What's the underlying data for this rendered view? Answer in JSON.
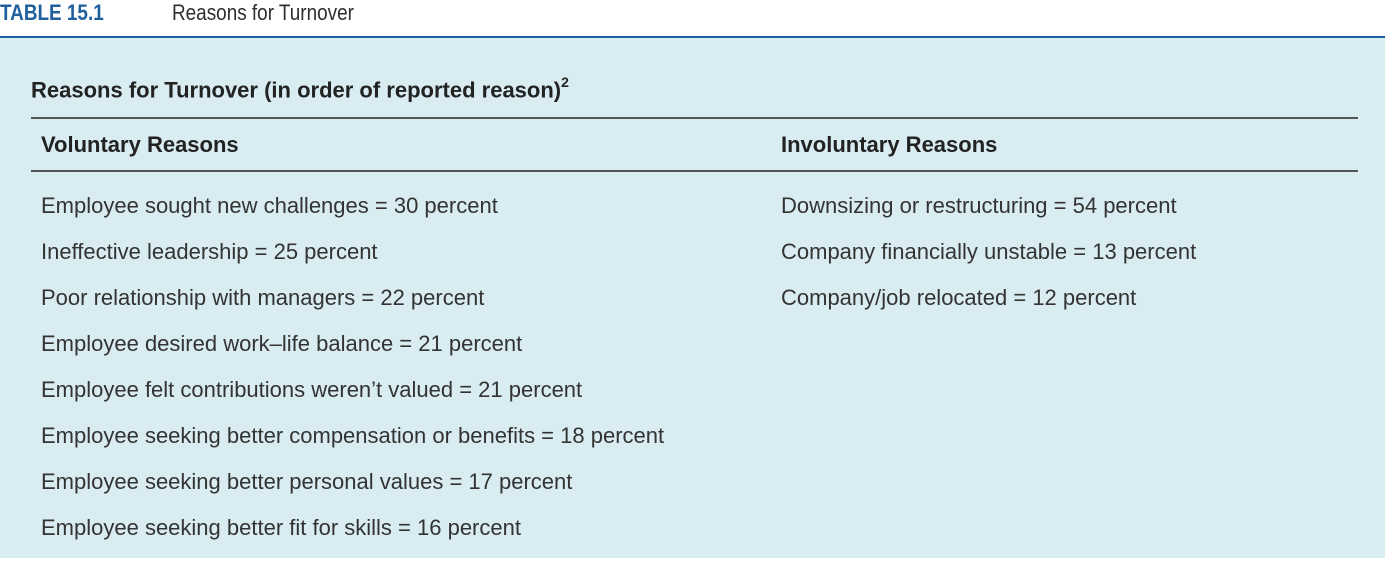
{
  "header": {
    "table_number": "TABLE 15.1",
    "table_title": "Reasons for Turnover"
  },
  "subtitle": {
    "text": "Reasons for Turnover (in order of reported reason)",
    "footnote": "2"
  },
  "columns": {
    "voluntary": {
      "heading": "Voluntary Reasons",
      "items": [
        "Employee sought new challenges = 30 percent",
        "Ineffective leadership = 25 percent",
        "Poor relationship with managers = 22 percent",
        "Employee desired work–life balance = 21 percent",
        "Employee felt contributions weren’t valued = 21 percent",
        "Employee seeking better compensation or benefits = 18 percent",
        "Employee seeking better personal values = 17 percent",
        "Employee seeking better fit for skills = 16 percent"
      ]
    },
    "involuntary": {
      "heading": "Involuntary Reasons",
      "items": [
        "Downsizing or restructuring = 54 percent",
        "Company financially unstable = 13 percent",
        "Company/job relocated = 12 percent"
      ]
    }
  },
  "colors": {
    "accent": "#1f5f9c",
    "panel_background": "#d8ecf2"
  }
}
